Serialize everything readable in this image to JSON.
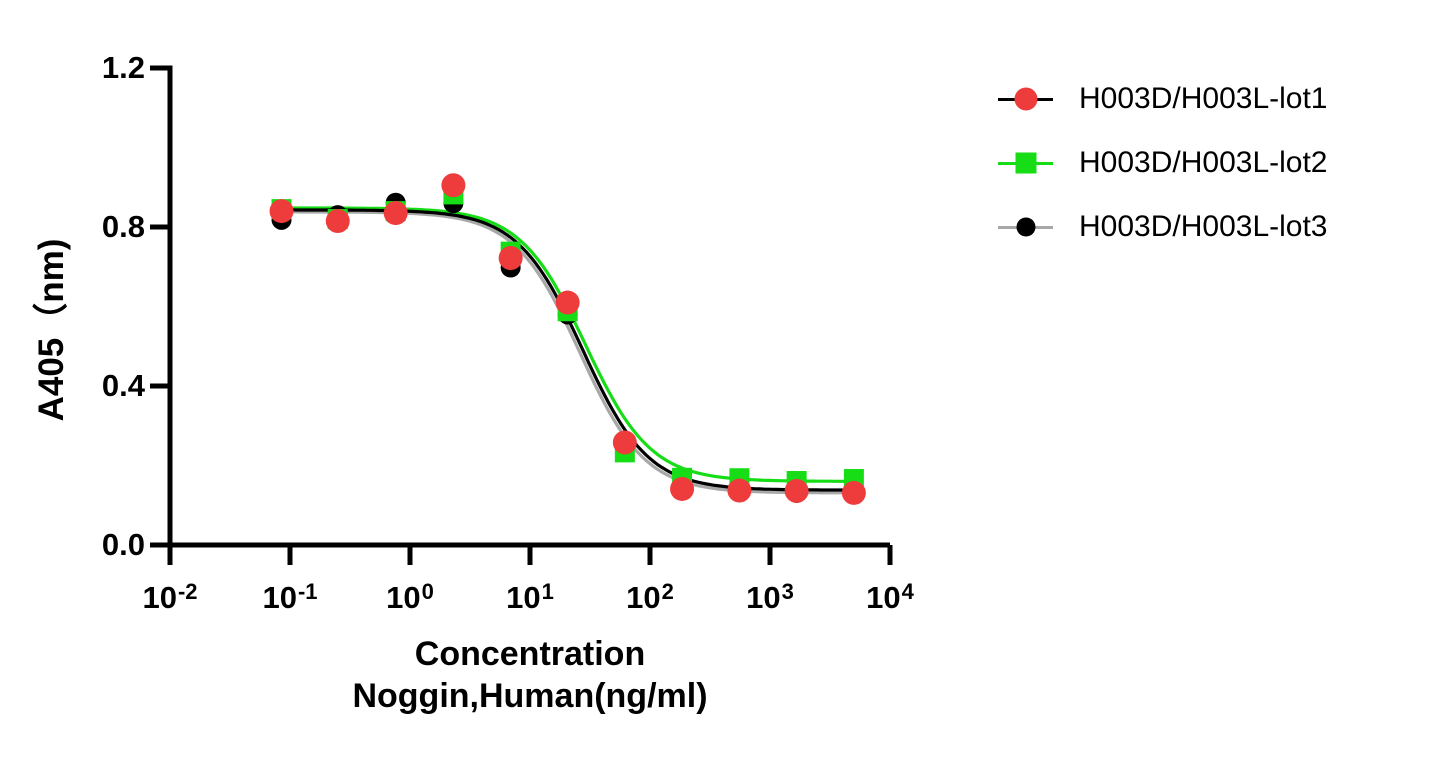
{
  "figure": {
    "background": "#FFFFFF"
  },
  "chart_data": {
    "type": "scatter",
    "title": "",
    "x_scale": "log10",
    "x_axis": {
      "title_line1": "Concentration",
      "title_line2": "Noggin,Human(ng/ml)",
      "min_exp": -2,
      "max_exp": 4,
      "ticks": [
        {
          "base": "10",
          "exp": "-2"
        },
        {
          "base": "10",
          "exp": "-1"
        },
        {
          "base": "10",
          "exp": "0"
        },
        {
          "base": "10",
          "exp": "1"
        },
        {
          "base": "10",
          "exp": "2"
        },
        {
          "base": "10",
          "exp": "3"
        },
        {
          "base": "10",
          "exp": "4"
        }
      ]
    },
    "y_axis": {
      "title": "A405（nm)",
      "min": 0,
      "max": 1.2,
      "ticks": [
        "0.0",
        "0.4",
        "0.8",
        "1.2"
      ]
    },
    "concentrations_ng_ml": [
      0.085,
      0.25,
      0.76,
      2.3,
      6.9,
      20.6,
      61.7,
      185,
      556,
      1667,
      5000
    ],
    "series": [
      {
        "name": "H003D/H003L-lot1",
        "marker": "circle",
        "marker_size": 22,
        "marker_color": "#EE3C3C",
        "line_color": "#000000",
        "values": [
          0.84,
          0.815,
          0.835,
          0.905,
          0.722,
          0.61,
          0.258,
          0.141,
          0.137,
          0.136,
          0.131
        ],
        "fit": {
          "top": 0.843,
          "bottom": 0.138,
          "logIC50": 1.44,
          "hill": 1.6
        }
      },
      {
        "name": "H003D/H003L-lot2",
        "marker": "square",
        "marker_size": 20,
        "marker_color": "#17DD17",
        "line_color": "#17DD17",
        "values": [
          0.845,
          0.82,
          0.84,
          0.882,
          0.738,
          0.588,
          0.233,
          0.169,
          0.168,
          0.161,
          0.166
        ],
        "fit": {
          "top": 0.848,
          "bottom": 0.16,
          "logIC50": 1.462,
          "hill": 1.6
        }
      },
      {
        "name": "H003D/H003L-lot3",
        "marker": "circle",
        "marker_size": 20,
        "marker_color": "#000000",
        "line_color": "#A8A8A8",
        "values": [
          0.818,
          0.83,
          0.861,
          0.86,
          0.698,
          0.58,
          0.245,
          0.143,
          0.134,
          0.131,
          0.131
        ],
        "fit": {
          "top": 0.838,
          "bottom": 0.131,
          "logIC50": 1.415,
          "hill": 1.6
        }
      }
    ]
  }
}
